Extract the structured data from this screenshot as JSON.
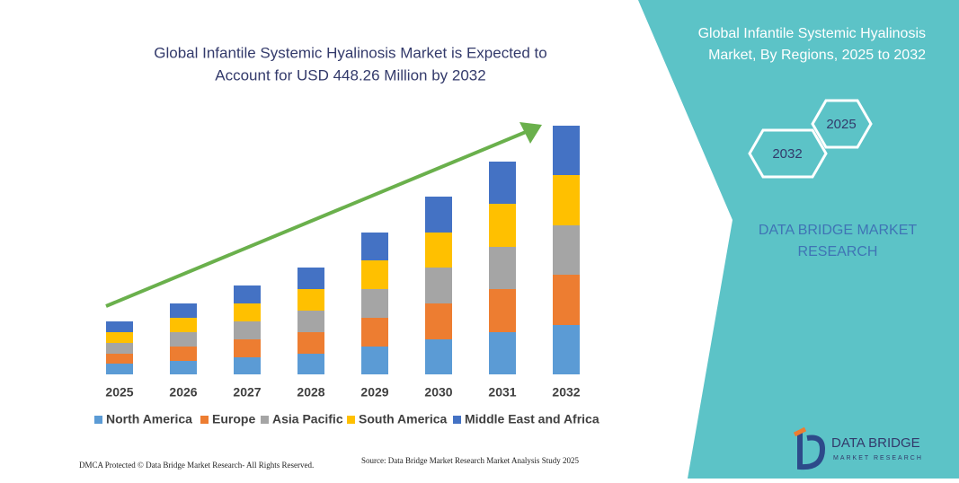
{
  "chart_data": {
    "type": "stacked_bar",
    "title_lines": [
      "Global Infantile Systemic Hyalinosis Market is Expected to",
      "Account for USD 448.26 Million by 2032"
    ],
    "categories": [
      "2025",
      "2026",
      "2027",
      "2028",
      "2029",
      "2030",
      "2031",
      "2032"
    ],
    "series": [
      {
        "name": "North America",
        "color": "#5b9bd5",
        "values": [
          12,
          15,
          19,
          23,
          31,
          39,
          47,
          55
        ]
      },
      {
        "name": "Europe",
        "color": "#ed7d31",
        "values": [
          11,
          16,
          20,
          24,
          32,
          40,
          48,
          56
        ]
      },
      {
        "name": "Asia Pacific",
        "color": "#a5a5a5",
        "values": [
          12,
          16,
          20,
          24,
          32,
          40,
          47,
          55
        ]
      },
      {
        "name": "South America",
        "color": "#ffc000",
        "values": [
          12,
          16,
          20,
          24,
          32,
          39,
          48,
          56
        ]
      },
      {
        "name": "Middle East and Africa",
        "color": "#4472c4",
        "values": [
          12,
          16,
          20,
          24,
          31,
          40,
          47,
          55
        ]
      }
    ],
    "ylim": [
      0,
      300
    ]
  },
  "panel": {
    "title_lines": [
      "Global Infantile Systemic Hyalinosis",
      "Market, By Regions, 2025 to 2032"
    ],
    "hex_labels": [
      "2025",
      "2032"
    ],
    "brand_lines": [
      "DATA BRIDGE MARKET",
      "RESEARCH"
    ],
    "logo_name": "DATA BRIDGE",
    "logo_sub": "MARKET RESEARCH"
  },
  "footer": {
    "dmca": "DMCA Protected © Data Bridge Market Research- All Rights Reserved.",
    "source": "Source: Data Bridge Market Research Market Analysis Study 2025"
  }
}
